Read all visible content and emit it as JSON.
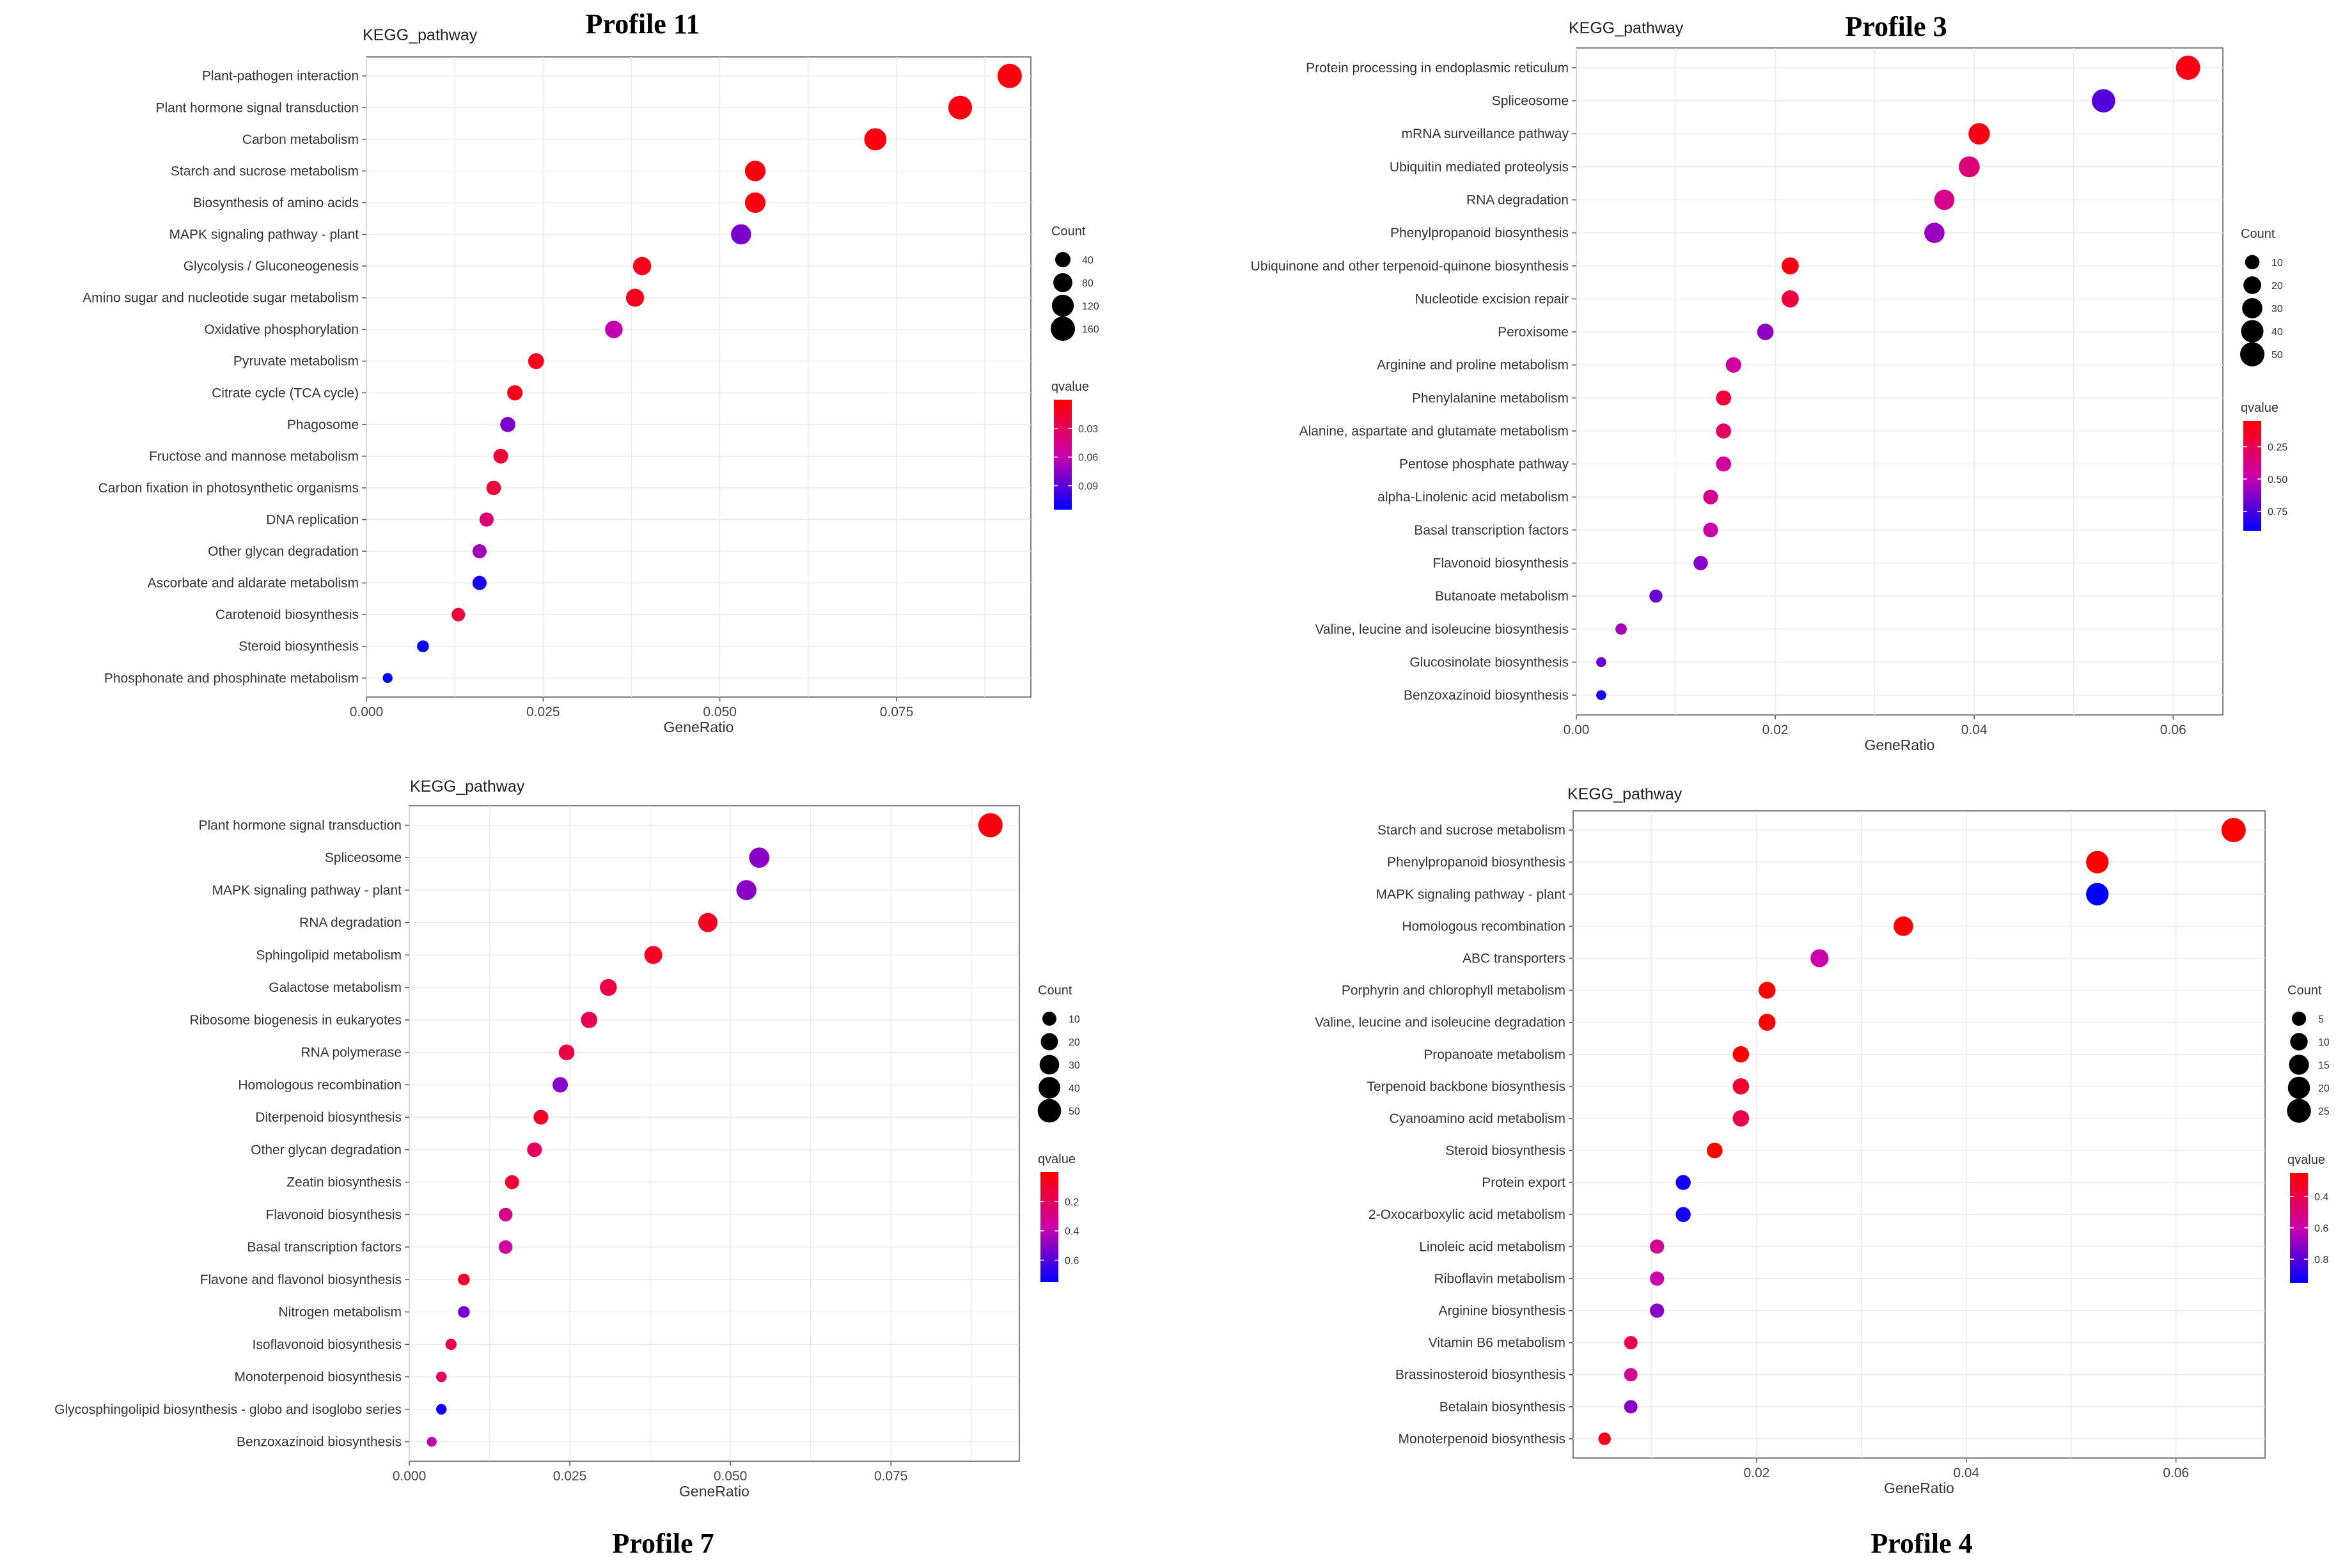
{
  "figure": {
    "colors": {
      "low_q": "#ff0000",
      "mid_q": "#9900cc",
      "high_q": "#0000ff",
      "panel_bg": "#ffffff",
      "grid": "#ebebeb"
    }
  },
  "chart_data": [
    {
      "type": "scatter",
      "profile": "Profile 11",
      "title": "KEGG_pathway",
      "xlabel": "GeneRatio",
      "xlim": [
        0.0,
        0.094
      ],
      "xticks": [
        0.0,
        0.025,
        0.05,
        0.075
      ],
      "xtick_labels": [
        "0.000",
        "0.025",
        "0.050",
        "0.075"
      ],
      "categories": [
        "Plant-pathogen interaction",
        "Plant hormone signal transduction",
        "Carbon metabolism",
        "Starch and sucrose metabolism",
        "Biosynthesis of amino acids",
        "MAPK signaling pathway - plant",
        "Glycolysis / Gluconeogenesis",
        "Amino sugar and nucleotide sugar metabolism",
        "Oxidative phosphorylation",
        "Pyruvate metabolism",
        "Citrate cycle (TCA cycle)",
        "Phagosome",
        "Fructose and mannose metabolism",
        "Carbon fixation in photosynthetic organisms",
        "DNA replication",
        "Other glycan degradation",
        "Ascorbate and aldarate metabolism",
        "Carotenoid biosynthesis",
        "Steroid biosynthesis",
        "Phosphonate and phosphinate metabolism"
      ],
      "gene_ratio": [
        0.091,
        0.084,
        0.072,
        0.055,
        0.055,
        0.053,
        0.039,
        0.038,
        0.035,
        0.024,
        0.021,
        0.02,
        0.019,
        0.018,
        0.017,
        0.016,
        0.016,
        0.013,
        0.008,
        0.003
      ],
      "count": [
        160,
        150,
        125,
        100,
        100,
        95,
        70,
        68,
        62,
        45,
        40,
        38,
        35,
        33,
        30,
        30,
        30,
        25,
        15,
        6
      ],
      "qvalue": [
        0.005,
        0.005,
        0.005,
        0.005,
        0.005,
        0.08,
        0.01,
        0.01,
        0.06,
        0.01,
        0.01,
        0.08,
        0.02,
        0.02,
        0.04,
        0.07,
        0.11,
        0.02,
        0.115,
        0.115
      ],
      "legend": {
        "size_title": "Count",
        "size_values": [
          40,
          80,
          120,
          160
        ],
        "size_labels": [
          "40",
          "80",
          "120",
          "160"
        ],
        "color_title": "qvalue",
        "color_range": [
          0.0,
          0.115
        ],
        "color_ticks": [
          0.03,
          0.06,
          0.09
        ],
        "color_tick_labels": [
          "0.03",
          "0.06",
          "0.09"
        ]
      }
    },
    {
      "type": "scatter",
      "profile": "Profile 3",
      "title": "KEGG_pathway",
      "xlabel": "GeneRatio",
      "xlim": [
        0.0,
        0.065
      ],
      "xticks": [
        0.0,
        0.02,
        0.04,
        0.06
      ],
      "xtick_labels": [
        "0.00",
        "0.02",
        "0.04",
        "0.06"
      ],
      "categories": [
        "Protein processing in endoplasmic reticulum",
        "Spliceosome",
        "mRNA surveillance pathway",
        "Ubiquitin mediated proteolysis",
        "RNA degradation",
        "Phenylpropanoid biosynthesis",
        "Ubiquinone and other terpenoid-quinone biosynthesis",
        "Nucleotide excision repair",
        "Peroxisome",
        "Arginine and proline metabolism",
        "Phenylalanine metabolism",
        "Alanine, aspartate and glutamate metabolism",
        "Pentose phosphate pathway",
        "alpha-Linolenic acid metabolism",
        "Basal transcription factors",
        "Flavonoid biosynthesis",
        "Butanoate metabolism",
        "Valine, leucine and isoleucine biosynthesis",
        "Glucosinolate biosynthesis",
        "Benzoxazinoid biosynthesis"
      ],
      "gene_ratio": [
        0.0615,
        0.053,
        0.0405,
        0.0395,
        0.037,
        0.036,
        0.0215,
        0.0215,
        0.019,
        0.0158,
        0.0148,
        0.0148,
        0.0148,
        0.0135,
        0.0135,
        0.0125,
        0.008,
        0.0045,
        0.0025,
        0.0025
      ],
      "count": [
        50,
        45,
        35,
        33,
        30,
        30,
        18,
        18,
        16,
        13,
        12,
        12,
        12,
        11,
        11,
        10,
        7,
        4,
        2,
        2
      ],
      "qvalue": [
        0.1,
        0.72,
        0.1,
        0.35,
        0.4,
        0.58,
        0.1,
        0.2,
        0.6,
        0.45,
        0.2,
        0.3,
        0.45,
        0.4,
        0.48,
        0.62,
        0.68,
        0.55,
        0.68,
        0.85
      ],
      "legend": {
        "size_title": "Count",
        "size_values": [
          10,
          20,
          30,
          40,
          50
        ],
        "size_labels": [
          "10",
          "20",
          "30",
          "40",
          "50"
        ],
        "color_title": "qvalue",
        "color_range": [
          0.05,
          0.9
        ],
        "color_ticks": [
          0.25,
          0.5,
          0.75
        ],
        "color_tick_labels": [
          "0.25",
          "0.50",
          "0.75"
        ]
      }
    },
    {
      "type": "scatter",
      "profile": "Profile 7",
      "title": "KEGG_pathway",
      "xlabel": "GeneRatio",
      "xlim": [
        0.0,
        0.095
      ],
      "xticks": [
        0.0,
        0.025,
        0.05,
        0.075
      ],
      "xtick_labels": [
        "0.000",
        "0.025",
        "0.050",
        "0.075"
      ],
      "categories": [
        "Plant hormone signal transduction",
        "Spliceosome",
        "MAPK signaling pathway - plant",
        "RNA degradation",
        "Sphingolipid metabolism",
        "Galactose metabolism",
        "Ribosome biogenesis in eukaryotes",
        "RNA polymerase",
        "Homologous recombination",
        "Diterpenoid biosynthesis",
        "Other glycan degradation",
        "Zeatin biosynthesis",
        "Flavonoid biosynthesis",
        "Basal transcription factors",
        "Flavone and flavonol biosynthesis",
        "Nitrogen metabolism",
        "Isoflavonoid biosynthesis",
        "Monoterpenoid biosynthesis",
        "Glycosphingolipid biosynthesis - globo and isoglobo series",
        "Benzoxazinoid biosynthesis"
      ],
      "gene_ratio": [
        0.0905,
        0.0545,
        0.0525,
        0.0465,
        0.038,
        0.031,
        0.028,
        0.0245,
        0.0235,
        0.0205,
        0.0195,
        0.016,
        0.015,
        0.015,
        0.0085,
        0.0085,
        0.0065,
        0.005,
        0.005,
        0.0035
      ],
      "count": [
        55,
        33,
        32,
        28,
        23,
        19,
        17,
        15,
        14,
        12,
        12,
        10,
        9,
        9,
        5,
        5,
        4,
        3,
        3,
        2
      ],
      "qvalue": [
        0.03,
        0.5,
        0.5,
        0.08,
        0.08,
        0.15,
        0.18,
        0.15,
        0.5,
        0.08,
        0.2,
        0.1,
        0.3,
        0.35,
        0.1,
        0.55,
        0.15,
        0.2,
        0.72,
        0.4
      ],
      "legend": {
        "size_title": "Count",
        "size_values": [
          10,
          20,
          30,
          40,
          50
        ],
        "size_labels": [
          "10",
          "20",
          "30",
          "40",
          "50"
        ],
        "color_title": "qvalue",
        "color_range": [
          0.0,
          0.75
        ],
        "color_ticks": [
          0.2,
          0.4,
          0.6
        ],
        "color_tick_labels": [
          "0.2",
          "0.4",
          "0.6"
        ]
      }
    },
    {
      "type": "scatter",
      "profile": "Profile 4",
      "title": "KEGG_pathway",
      "xlabel": "GeneRatio",
      "xlim": [
        0.0025,
        0.0685
      ],
      "xticks": [
        0.02,
        0.04,
        0.06
      ],
      "xtick_labels": [
        "0.02",
        "0.04",
        "0.06"
      ],
      "categories": [
        "Starch and sucrose metabolism",
        "Phenylpropanoid biosynthesis",
        "MAPK signaling pathway - plant",
        "Homologous recombination",
        "ABC transporters",
        "Porphyrin and chlorophyll metabolism",
        "Valine, leucine and isoleucine degradation",
        "Propanoate metabolism",
        "Terpenoid backbone biosynthesis",
        "Cyanoamino acid metabolism",
        "Steroid biosynthesis",
        "Protein export",
        "2-Oxocarboxylic acid metabolism",
        "Linoleic acid metabolism",
        "Riboflavin metabolism",
        "Arginine biosynthesis",
        "Vitamin B6 metabolism",
        "Brassinosteroid biosynthesis",
        "Betalain biosynthesis",
        "Monoterpenoid biosynthesis"
      ],
      "gene_ratio": [
        0.0655,
        0.0525,
        0.0525,
        0.034,
        0.026,
        0.021,
        0.021,
        0.0185,
        0.0185,
        0.0185,
        0.016,
        0.013,
        0.013,
        0.0105,
        0.0105,
        0.0105,
        0.008,
        0.008,
        0.008,
        0.0055
      ],
      "count": [
        26,
        21,
        21,
        14,
        11,
        9,
        9,
        8,
        8,
        8,
        7,
        6,
        6,
        5,
        5,
        5,
        4,
        4,
        4,
        3
      ],
      "qvalue": [
        0.1,
        0.1,
        0.95,
        0.1,
        0.6,
        0.15,
        0.2,
        0.2,
        0.35,
        0.4,
        0.15,
        0.92,
        0.92,
        0.55,
        0.6,
        0.72,
        0.4,
        0.55,
        0.72,
        0.3
      ],
      "legend": {
        "size_title": "Count",
        "size_values": [
          5,
          10,
          15,
          20,
          25
        ],
        "size_labels": [
          "5",
          "10",
          "15",
          "20",
          "25"
        ],
        "color_title": "qvalue",
        "color_range": [
          0.25,
          0.95
        ],
        "color_ticks": [
          0.4,
          0.6,
          0.8
        ],
        "color_tick_labels": [
          "0.4",
          "0.6",
          "0.8"
        ]
      }
    }
  ]
}
